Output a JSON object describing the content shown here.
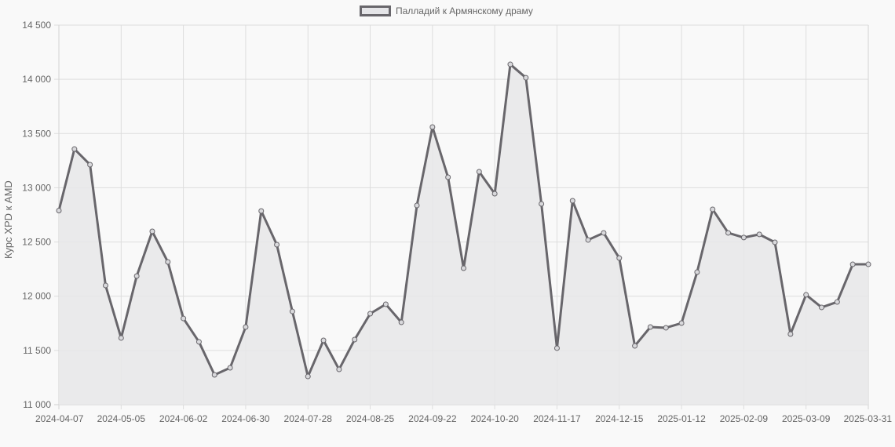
{
  "chart_data": {
    "type": "line",
    "title": "",
    "legend": [
      {
        "label": "Палладий к Армянскому драму",
        "position": "top"
      }
    ],
    "xlabel": "",
    "ylabel": "Курс XPD к AMD",
    "ylim": [
      11000,
      14500
    ],
    "yticks": [
      11000,
      11500,
      12000,
      12500,
      13000,
      13500,
      14000,
      14500
    ],
    "ytick_labels": [
      "11 000",
      "11 500",
      "12 000",
      "12 500",
      "13 000",
      "13 500",
      "14 000",
      "14 500"
    ],
    "xtick_labels": [
      "2024-04-07",
      "2024-05-05",
      "2024-06-02",
      "2024-06-30",
      "2024-07-28",
      "2024-08-25",
      "2024-09-22",
      "2024-10-20",
      "2024-11-17",
      "2024-12-15",
      "2025-01-12",
      "2025-02-09",
      "2025-03-09",
      "2025-03-31"
    ],
    "grid": true,
    "fill": true,
    "colors": {
      "line": "#68666b",
      "fill": "#e7e7e9",
      "grid": "#dddddd",
      "background": "#f9f9f9"
    },
    "x": [
      "2024-04-07",
      "2024-04-14",
      "2024-04-21",
      "2024-04-28",
      "2024-05-05",
      "2024-05-12",
      "2024-05-19",
      "2024-05-26",
      "2024-06-02",
      "2024-06-09",
      "2024-06-16",
      "2024-06-23",
      "2024-06-30",
      "2024-07-07",
      "2024-07-14",
      "2024-07-21",
      "2024-07-28",
      "2024-08-04",
      "2024-08-11",
      "2024-08-18",
      "2024-08-25",
      "2024-09-01",
      "2024-09-08",
      "2024-09-15",
      "2024-09-22",
      "2024-09-29",
      "2024-10-06",
      "2024-10-13",
      "2024-10-20",
      "2024-10-27",
      "2024-11-03",
      "2024-11-10",
      "2024-11-17",
      "2024-11-24",
      "2024-12-01",
      "2024-12-08",
      "2024-12-15",
      "2024-12-22",
      "2024-12-29",
      "2025-01-05",
      "2025-01-12",
      "2025-01-19",
      "2025-01-26",
      "2025-02-02",
      "2025-02-09",
      "2025-02-16",
      "2025-02-23",
      "2025-03-02",
      "2025-03-09",
      "2025-03-16",
      "2025-03-23",
      "2025-03-30",
      "2025-03-31"
    ],
    "series": [
      {
        "name": "Палладий к Армянскому драму",
        "values": [
          12790,
          13357,
          13213,
          12099,
          11615,
          12186,
          12598,
          12316,
          11795,
          11579,
          11275,
          11340,
          11716,
          12786,
          12475,
          11860,
          11260,
          11593,
          11325,
          11600,
          11839,
          11926,
          11759,
          12837,
          13560,
          13097,
          12258,
          13148,
          12945,
          14138,
          14015,
          12851,
          11521,
          12880,
          12519,
          12584,
          12352,
          11542,
          11716,
          11709,
          11752,
          12222,
          12801,
          12584,
          12541,
          12570,
          12497,
          11651,
          12013,
          11897,
          11947,
          12294,
          12294
        ]
      }
    ]
  }
}
